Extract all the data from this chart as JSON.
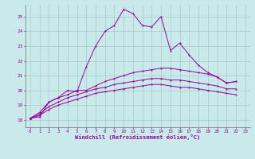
{
  "bg_color": "#c8eaea",
  "grid_color": "#a8c8c8",
  "line_color": "#990099",
  "xlabel": "Windchill (Refroidissement éolien,°C)",
  "xlim": [
    -0.5,
    23.5
  ],
  "ylim": [
    17.5,
    25.8
  ],
  "yticks": [
    18,
    19,
    20,
    21,
    22,
    23,
    24,
    25
  ],
  "xticks": [
    0,
    1,
    2,
    3,
    4,
    5,
    6,
    7,
    8,
    9,
    10,
    11,
    12,
    13,
    14,
    15,
    16,
    17,
    18,
    19,
    20,
    21,
    22,
    23
  ],
  "lines": [
    [
      18.1,
      18.2,
      19.2,
      19.5,
      20.0,
      19.9,
      21.6,
      23.0,
      24.0,
      24.4,
      25.5,
      25.2,
      24.4,
      24.3,
      25.0,
      22.7,
      23.2,
      22.4,
      21.7,
      21.2,
      20.9,
      20.5,
      20.6
    ],
    [
      18.1,
      18.5,
      19.2,
      19.5,
      19.7,
      20.0,
      20.0,
      20.3,
      20.6,
      20.8,
      21.0,
      21.2,
      21.3,
      21.4,
      21.5,
      21.5,
      21.4,
      21.3,
      21.2,
      21.1,
      20.9,
      20.5,
      20.6
    ],
    [
      18.1,
      18.4,
      18.9,
      19.2,
      19.5,
      19.7,
      19.9,
      20.1,
      20.2,
      20.4,
      20.5,
      20.6,
      20.7,
      20.8,
      20.8,
      20.7,
      20.7,
      20.6,
      20.5,
      20.4,
      20.3,
      20.1,
      20.1
    ],
    [
      18.1,
      18.3,
      18.7,
      19.0,
      19.2,
      19.4,
      19.6,
      19.8,
      19.9,
      20.0,
      20.1,
      20.2,
      20.3,
      20.4,
      20.4,
      20.3,
      20.2,
      20.2,
      20.1,
      20.0,
      19.9,
      19.8,
      19.7
    ]
  ]
}
